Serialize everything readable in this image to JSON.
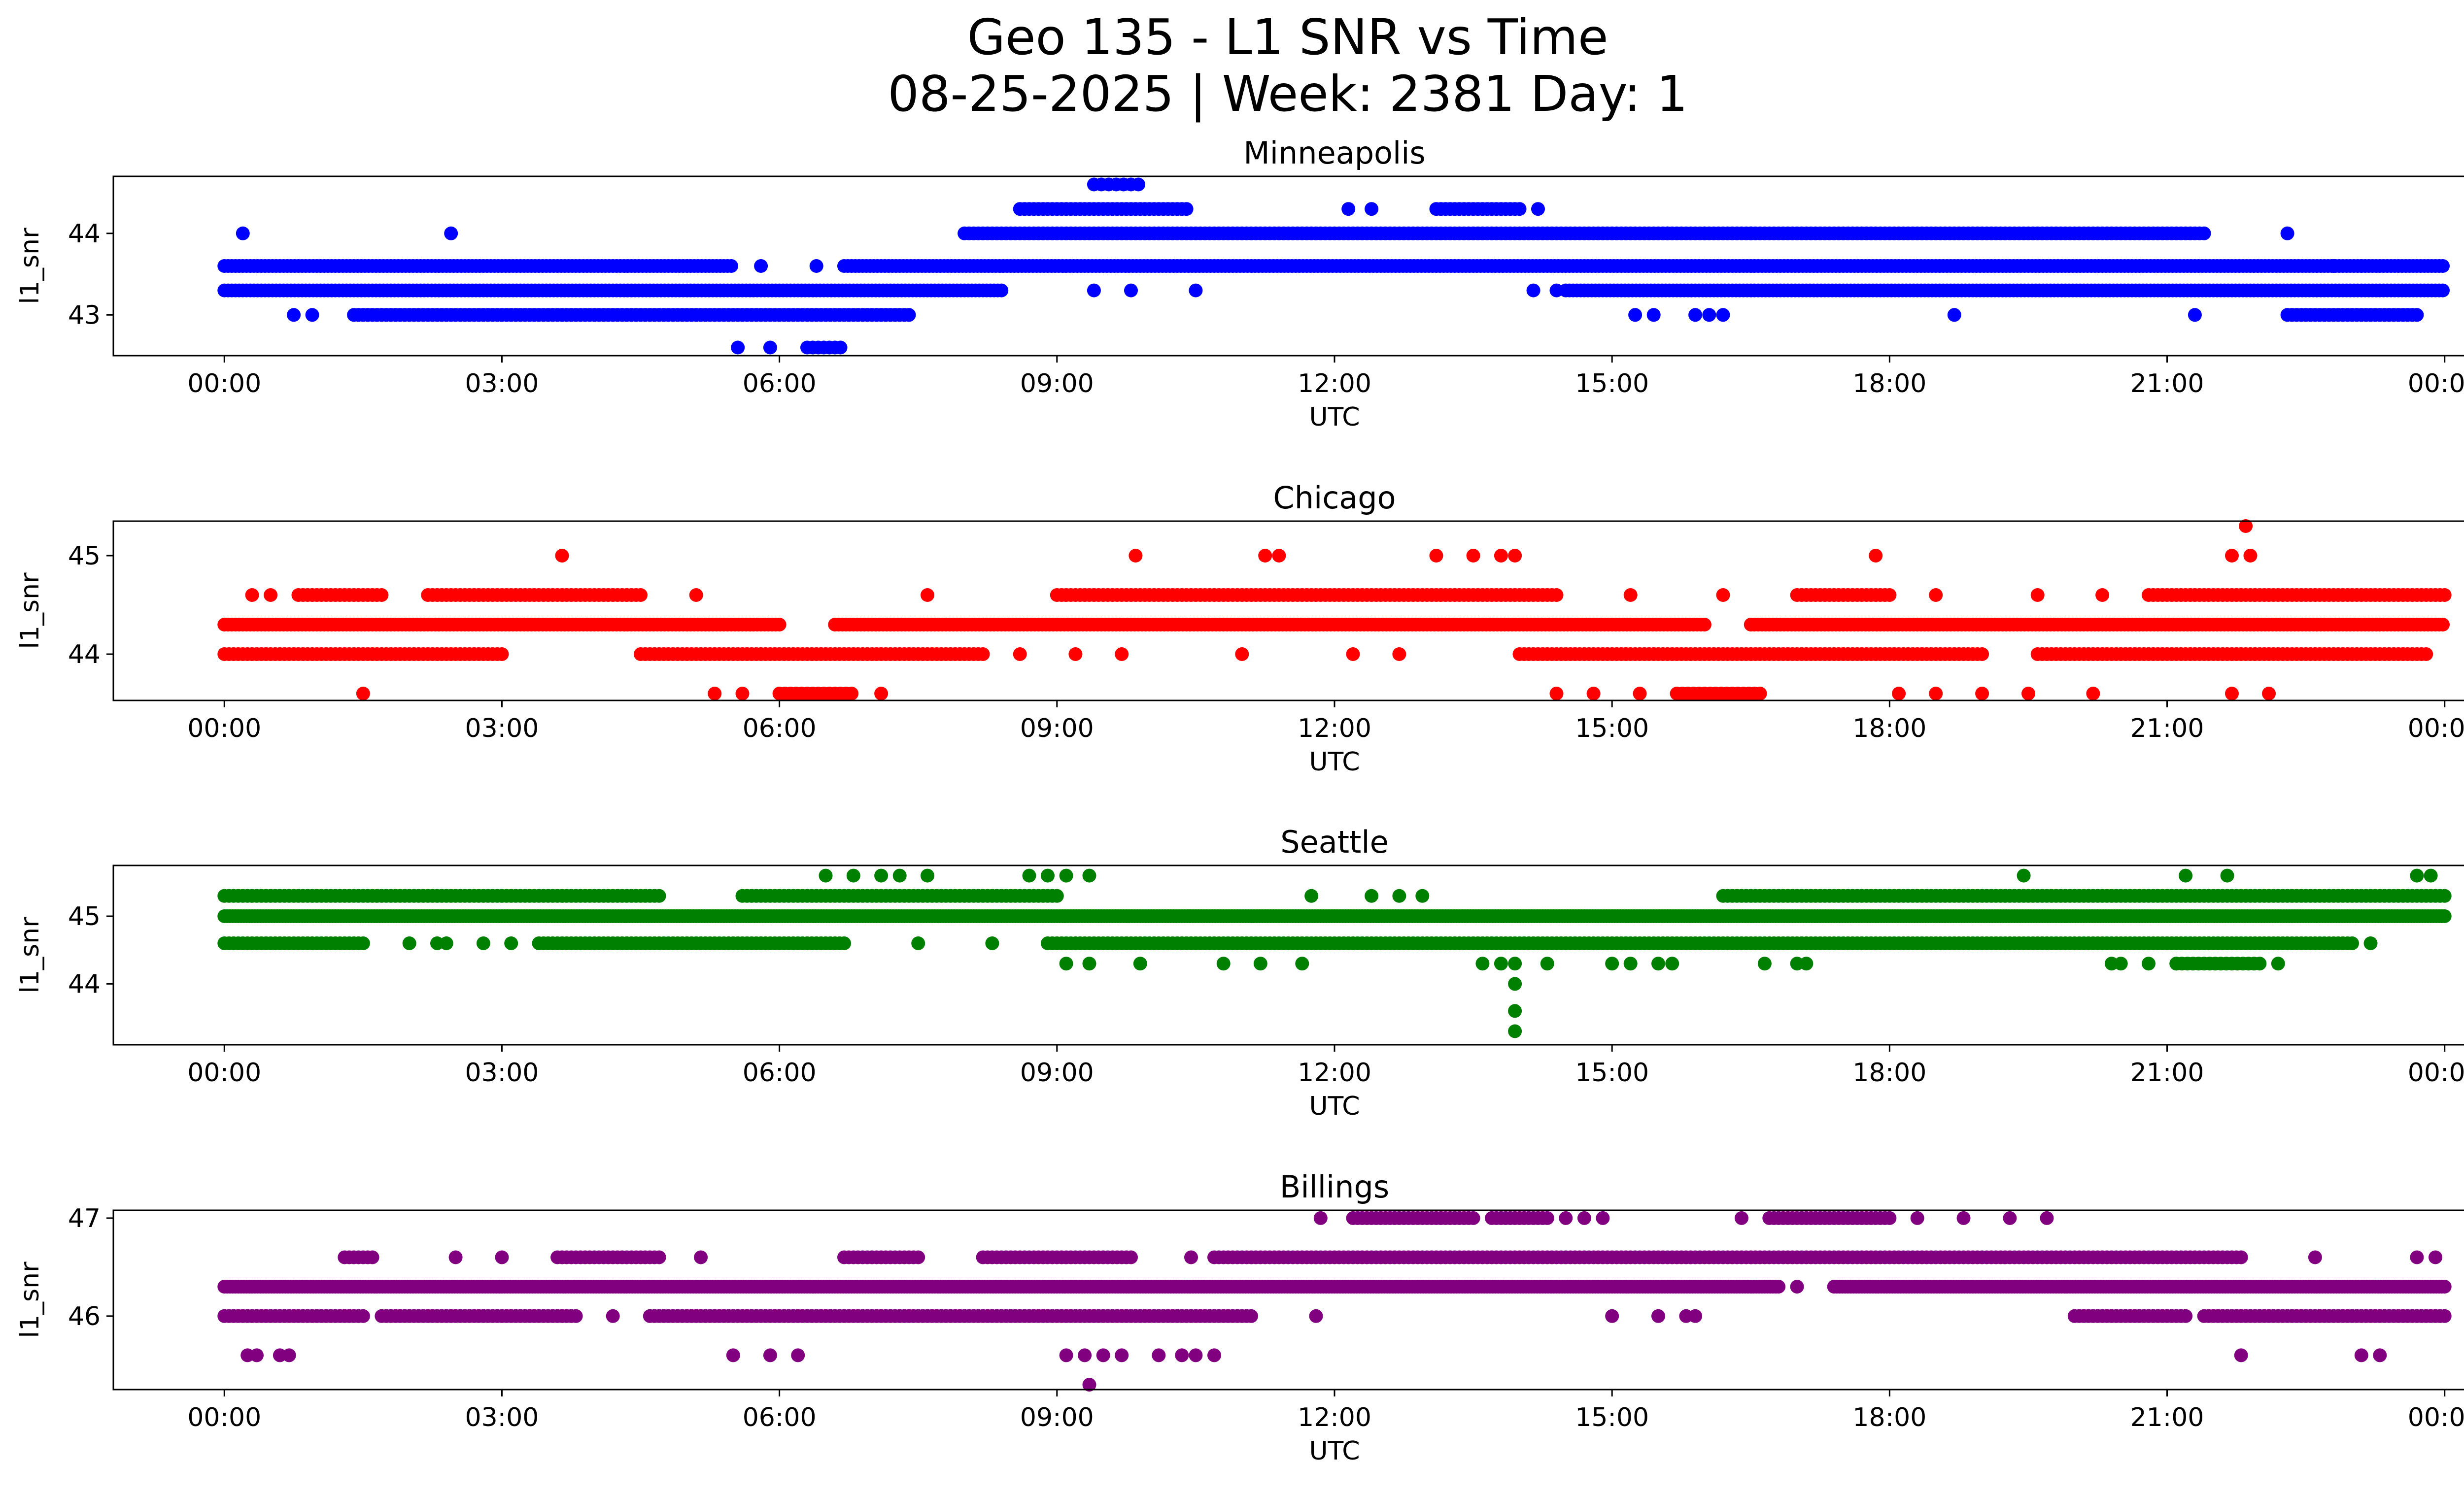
{
  "figure": {
    "title_line1": "Geo 135 - L1 SNR vs Time",
    "title_line2": "08-25-2025 | Week: 2381 Day: 1"
  },
  "chart_data": [
    {
      "type": "scatter",
      "title": "Minneapolis",
      "xlabel": "UTC",
      "ylabel": "l1_snr",
      "color": "#0000ff",
      "xticks": [
        "00:00",
        "03:00",
        "06:00",
        "09:00",
        "12:00",
        "15:00",
        "18:00",
        "21:00",
        "00:00"
      ],
      "xlim_hours": [
        -1.2,
        25.2
      ],
      "yticks": [
        43,
        44
      ],
      "ylim": [
        42.5,
        44.7
      ],
      "bands": [
        {
          "y": 43.6,
          "ranges": [
            [
              0,
              5.5
            ],
            [
              6.7,
              24
            ]
          ],
          "step": 0.04
        },
        {
          "y": 43.3,
          "ranges": [
            [
              0,
              8.4
            ],
            [
              14.5,
              24
            ]
          ],
          "step": 0.04
        },
        {
          "y": 43.0,
          "ranges": [
            [
              1.4,
              7.4
            ],
            [
              22.3,
              23.7
            ]
          ],
          "step": 0.05
        },
        {
          "y": 44.0,
          "ranges": [
            [
              8.0,
              21.4
            ]
          ],
          "step": 0.05
        },
        {
          "y": 44.3,
          "ranges": [
            [
              8.6,
              10.4
            ],
            [
              13.1,
              14.0
            ]
          ],
          "step": 0.05
        },
        {
          "y": 44.6,
          "ranges": [
            [
              9.4,
              9.9
            ]
          ],
          "step": 0.08
        },
        {
          "y": 42.6,
          "ranges": [
            [
              6.3,
              6.7
            ]
          ],
          "step": 0.06
        }
      ],
      "points": [
        [
          0.2,
          44.0
        ],
        [
          2.45,
          44.0
        ],
        [
          12.15,
          44.3
        ],
        [
          12.4,
          44.3
        ],
        [
          14.2,
          44.3
        ],
        [
          22.3,
          44.0
        ],
        [
          0.75,
          43.0
        ],
        [
          0.95,
          43.0
        ],
        [
          5.55,
          42.6
        ],
        [
          5.9,
          42.6
        ],
        [
          5.8,
          43.6
        ],
        [
          6.4,
          43.6
        ],
        [
          9.4,
          43.3
        ],
        [
          9.8,
          43.3
        ],
        [
          10.5,
          43.3
        ],
        [
          14.15,
          43.3
        ],
        [
          14.4,
          43.3
        ],
        [
          15.25,
          43.0
        ],
        [
          15.45,
          43.0
        ],
        [
          15.9,
          43.0
        ],
        [
          16.05,
          43.0
        ],
        [
          16.2,
          43.0
        ],
        [
          18.7,
          43.0
        ],
        [
          21.3,
          43.0
        ],
        [
          15.6,
          44.0
        ],
        [
          16.0,
          44.0
        ],
        [
          16.5,
          44.0
        ],
        [
          22.8,
          43.6
        ],
        [
          23.1,
          43.6
        ]
      ]
    },
    {
      "type": "scatter",
      "title": "Chicago",
      "xlabel": "UTC",
      "ylabel": "l1_snr",
      "color": "#ff0000",
      "xticks": [
        "00:00",
        "03:00",
        "06:00",
        "09:00",
        "12:00",
        "15:00",
        "18:00",
        "21:00",
        "00:00"
      ],
      "xlim_hours": [
        -1.2,
        25.2
      ],
      "yticks": [
        44,
        45
      ],
      "ylim": [
        43.53,
        45.35
      ],
      "bands": [
        {
          "y": 44.3,
          "ranges": [
            [
              0,
              6.0
            ],
            [
              6.6,
              16.0
            ],
            [
              16.5,
              24
            ]
          ],
          "step": 0.04
        },
        {
          "y": 44.0,
          "ranges": [
            [
              0,
              3.0
            ],
            [
              4.5,
              8.2
            ],
            [
              14.0,
              19.0
            ],
            [
              19.6,
              23.8
            ]
          ],
          "step": 0.05
        },
        {
          "y": 44.6,
          "ranges": [
            [
              0.8,
              1.7
            ],
            [
              2.2,
              4.5
            ],
            [
              9.0,
              14.4
            ],
            [
              17.0,
              18.0
            ],
            [
              20.8,
              24
            ]
          ],
          "step": 0.05
        },
        {
          "y": 43.6,
          "ranges": [
            [
              6.0,
              6.8
            ],
            [
              15.7,
              16.6
            ]
          ],
          "step": 0.06
        }
      ],
      "points": [
        [
          3.65,
          45.0
        ],
        [
          9.85,
          45.0
        ],
        [
          11.25,
          45.0
        ],
        [
          11.4,
          45.0
        ],
        [
          13.1,
          45.0
        ],
        [
          13.5,
          45.0
        ],
        [
          13.8,
          45.0
        ],
        [
          13.95,
          45.0
        ],
        [
          17.85,
          45.0
        ],
        [
          21.7,
          45.0
        ],
        [
          21.9,
          45.0
        ],
        [
          21.85,
          45.3
        ],
        [
          1.5,
          43.6
        ],
        [
          5.3,
          43.6
        ],
        [
          5.6,
          43.6
        ],
        [
          7.1,
          43.6
        ],
        [
          14.4,
          43.6
        ],
        [
          14.8,
          43.6
        ],
        [
          15.3,
          43.6
        ],
        [
          18.1,
          43.6
        ],
        [
          18.5,
          43.6
        ],
        [
          19.0,
          43.6
        ],
        [
          19.5,
          43.6
        ],
        [
          20.2,
          43.6
        ],
        [
          21.7,
          43.6
        ],
        [
          22.1,
          43.6
        ],
        [
          8.6,
          44.0
        ],
        [
          9.2,
          44.0
        ],
        [
          9.7,
          44.0
        ],
        [
          11.0,
          44.0
        ],
        [
          12.2,
          44.0
        ],
        [
          12.7,
          44.0
        ],
        [
          0.3,
          44.6
        ],
        [
          0.5,
          44.6
        ],
        [
          5.1,
          44.6
        ],
        [
          7.6,
          44.6
        ],
        [
          15.2,
          44.6
        ],
        [
          16.2,
          44.6
        ],
        [
          18.5,
          44.6
        ],
        [
          19.6,
          44.6
        ],
        [
          20.3,
          44.6
        ]
      ]
    },
    {
      "type": "scatter",
      "title": "Seattle",
      "xlabel": "UTC",
      "ylabel": "l1_snr",
      "color": "#008000",
      "xticks": [
        "00:00",
        "03:00",
        "06:00",
        "09:00",
        "12:00",
        "15:00",
        "18:00",
        "21:00",
        "00:00"
      ],
      "xlim_hours": [
        -1.2,
        25.2
      ],
      "yticks": [
        44,
        45
      ],
      "ylim": [
        43.1,
        45.75
      ],
      "bands": [
        {
          "y": 45.0,
          "ranges": [
            [
              0,
              24
            ]
          ],
          "step": 0.03
        },
        {
          "y": 45.3,
          "ranges": [
            [
              0,
              4.7
            ],
            [
              5.6,
              9.0
            ],
            [
              16.2,
              24
            ]
          ],
          "step": 0.05
        },
        {
          "y": 44.6,
          "ranges": [
            [
              0,
              1.5
            ],
            [
              3.4,
              6.7
            ],
            [
              8.9,
              23.0
            ]
          ],
          "step": 0.05
        },
        {
          "y": 44.3,
          "ranges": [
            [
              21.1,
              22.0
            ]
          ],
          "step": 0.06
        }
      ],
      "points": [
        [
          6.5,
          45.6
        ],
        [
          6.8,
          45.6
        ],
        [
          7.1,
          45.6
        ],
        [
          7.3,
          45.6
        ],
        [
          7.6,
          45.6
        ],
        [
          8.7,
          45.6
        ],
        [
          8.9,
          45.6
        ],
        [
          9.1,
          45.6
        ],
        [
          9.35,
          45.6
        ],
        [
          19.45,
          45.6
        ],
        [
          21.2,
          45.6
        ],
        [
          21.65,
          45.6
        ],
        [
          23.7,
          45.6
        ],
        [
          23.85,
          45.6
        ],
        [
          11.75,
          45.3
        ],
        [
          12.4,
          45.3
        ],
        [
          12.7,
          45.3
        ],
        [
          12.95,
          45.3
        ],
        [
          9.1,
          44.3
        ],
        [
          9.35,
          44.3
        ],
        [
          9.9,
          44.3
        ],
        [
          10.8,
          44.3
        ],
        [
          11.2,
          44.3
        ],
        [
          11.65,
          44.3
        ],
        [
          13.6,
          44.3
        ],
        [
          13.8,
          44.3
        ],
        [
          13.95,
          44.3
        ],
        [
          14.3,
          44.3
        ],
        [
          15.0,
          44.3
        ],
        [
          15.2,
          44.3
        ],
        [
          15.5,
          44.3
        ],
        [
          15.65,
          44.3
        ],
        [
          16.65,
          44.3
        ],
        [
          17.0,
          44.3
        ],
        [
          17.1,
          44.3
        ],
        [
          20.4,
          44.3
        ],
        [
          20.5,
          44.3
        ],
        [
          20.8,
          44.3
        ],
        [
          21.1,
          44.3
        ],
        [
          22.2,
          44.3
        ],
        [
          13.95,
          44.0
        ],
        [
          13.95,
          43.6
        ],
        [
          13.95,
          43.3
        ],
        [
          2.0,
          44.6
        ],
        [
          2.3,
          44.6
        ],
        [
          2.4,
          44.6
        ],
        [
          2.8,
          44.6
        ],
        [
          3.1,
          44.6
        ],
        [
          7.5,
          44.6
        ],
        [
          8.3,
          44.6
        ],
        [
          23.2,
          44.6
        ]
      ]
    },
    {
      "type": "scatter",
      "title": "Billings",
      "xlabel": "UTC",
      "ylabel": "l1_snr",
      "color": "#800080",
      "xticks": [
        "00:00",
        "03:00",
        "06:00",
        "09:00",
        "12:00",
        "15:00",
        "18:00",
        "21:00",
        "00:00"
      ],
      "xlim_hours": [
        -1.2,
        25.2
      ],
      "yticks": [
        46,
        47
      ],
      "ylim": [
        45.25,
        47.08
      ],
      "bands": [
        {
          "y": 46.3,
          "ranges": [
            [
              0,
              16.8
            ],
            [
              17.4,
              24
            ]
          ],
          "step": 0.03
        },
        {
          "y": 46.0,
          "ranges": [
            [
              0,
              1.5
            ],
            [
              1.7,
              3.8
            ],
            [
              4.6,
              11.1
            ],
            [
              20.0,
              21.2
            ],
            [
              21.4,
              24
            ]
          ],
          "step": 0.05
        },
        {
          "y": 46.6,
          "ranges": [
            [
              1.3,
              1.6
            ],
            [
              3.6,
              4.7
            ],
            [
              6.7,
              7.5
            ],
            [
              8.2,
              9.8
            ],
            [
              10.7,
              21.8
            ]
          ],
          "step": 0.05
        },
        {
          "y": 47.0,
          "ranges": [
            [
              12.2,
              13.5
            ],
            [
              13.7,
              14.3
            ],
            [
              16.7,
              18.0
            ]
          ],
          "step": 0.05
        }
      ],
      "points": [
        [
          0.25,
          45.6
        ],
        [
          0.35,
          45.6
        ],
        [
          0.6,
          45.6
        ],
        [
          0.7,
          45.6
        ],
        [
          5.5,
          45.6
        ],
        [
          5.9,
          45.6
        ],
        [
          6.2,
          45.6
        ],
        [
          9.1,
          45.6
        ],
        [
          9.3,
          45.6
        ],
        [
          9.5,
          45.6
        ],
        [
          9.7,
          45.6
        ],
        [
          10.1,
          45.6
        ],
        [
          10.35,
          45.6
        ],
        [
          10.5,
          45.6
        ],
        [
          10.7,
          45.6
        ],
        [
          9.35,
          45.3
        ],
        [
          21.8,
          45.6
        ],
        [
          23.1,
          45.6
        ],
        [
          23.3,
          45.6
        ],
        [
          11.85,
          47.0
        ],
        [
          14.5,
          47.0
        ],
        [
          14.7,
          47.0
        ],
        [
          14.9,
          47.0
        ],
        [
          16.4,
          47.0
        ],
        [
          18.3,
          47.0
        ],
        [
          18.8,
          47.0
        ],
        [
          19.3,
          47.0
        ],
        [
          19.7,
          47.0
        ],
        [
          11.8,
          46.0
        ],
        [
          15.0,
          46.0
        ],
        [
          15.5,
          46.0
        ],
        [
          15.8,
          46.0
        ],
        [
          15.9,
          46.0
        ],
        [
          17.0,
          46.3
        ],
        [
          5.15,
          46.6
        ],
        [
          10.45,
          46.6
        ],
        [
          22.6,
          46.6
        ],
        [
          23.7,
          46.6
        ],
        [
          23.9,
          46.6
        ],
        [
          2.5,
          46.6
        ],
        [
          3.0,
          46.6
        ],
        [
          4.2,
          46.0
        ]
      ]
    }
  ]
}
